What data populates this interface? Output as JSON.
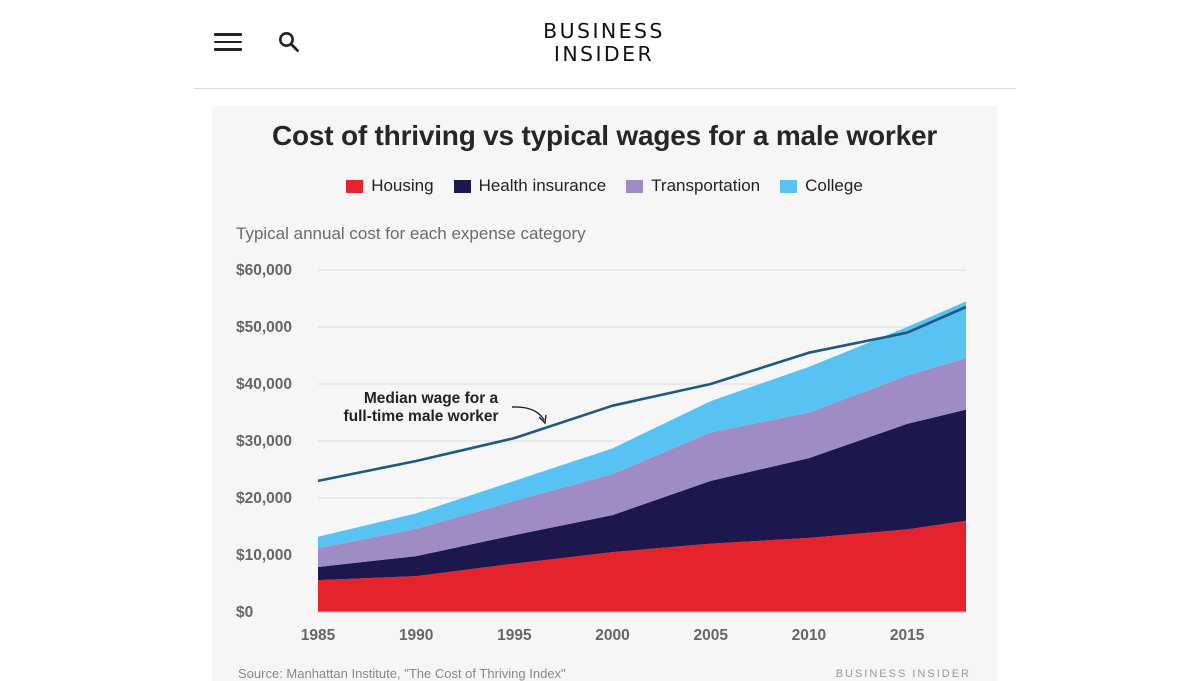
{
  "header": {
    "logo_line1": "BUSINESS",
    "logo_line2": "INSIDER"
  },
  "chart_data": {
    "type": "area",
    "title": "Cost of thriving vs typical wages for a male worker",
    "subtitle": "Typical annual cost for each expense category",
    "x": [
      1985,
      1990,
      1995,
      2000,
      2005,
      2010,
      2015,
      2018
    ],
    "xticks": [
      "1985",
      "1990",
      "1995",
      "2000",
      "2005",
      "2010",
      "2015"
    ],
    "yticks": [
      "$0",
      "$10,000",
      "$20,000",
      "$30,000",
      "$40,000",
      "$50,000",
      "$60,000"
    ],
    "ylim": [
      0,
      60000
    ],
    "xlim": [
      1985,
      2018
    ],
    "stacked": true,
    "series": [
      {
        "name": "Housing",
        "color": "#e5232d",
        "values": [
          5600,
          6300,
          8500,
          10500,
          12000,
          13000,
          14500,
          16000
        ]
      },
      {
        "name": "Health insurance",
        "color": "#1c174d",
        "values": [
          2300,
          3500,
          5000,
          6500,
          11000,
          14000,
          18500,
          19500
        ]
      },
      {
        "name": "Transportation",
        "color": "#a08cc4",
        "values": [
          3300,
          4800,
          6000,
          7200,
          8500,
          8000,
          8500,
          9000
        ]
      },
      {
        "name": "College",
        "color": "#58c3f2",
        "values": [
          2000,
          2700,
          3500,
          4500,
          5500,
          8000,
          8500,
          10000
        ]
      }
    ],
    "wage_line": {
      "label_line1": "Median wage for a",
      "label_line2": "full-time male worker",
      "color": "#1d5a80",
      "values": [
        23000,
        26500,
        30500,
        36200,
        40000,
        45500,
        49000,
        53500
      ]
    },
    "source": "Source: Manhattan Institute, \"The Cost of Thriving Index\"",
    "watermark": "BUSINESS INSIDER",
    "legend_placement": "top-center",
    "grid": true
  }
}
